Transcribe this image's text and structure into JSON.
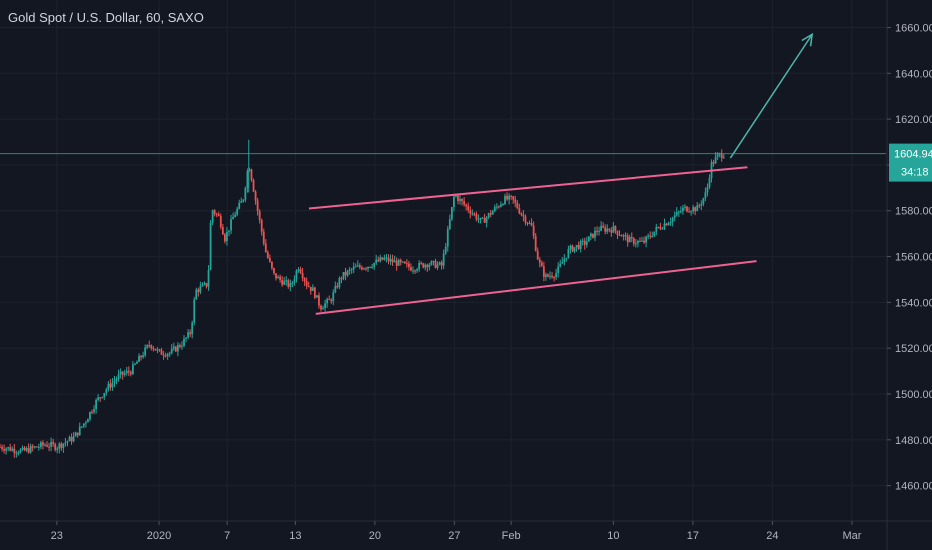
{
  "chart_data": {
    "type": "candlestick",
    "title": "Gold Spot / U.S. Dollar, 60, SAXO",
    "ylim": [
      1445,
      1672
    ],
    "y_ticks": [
      "1460.00",
      "1480.00",
      "1500.00",
      "1520.00",
      "1540.00",
      "1560.00",
      "1580.00",
      "1600.00",
      "1620.00",
      "1640.00",
      "1660.00"
    ],
    "x_ticks": [
      "23",
      "2020",
      "7",
      "13",
      "20",
      "27",
      "Feb",
      "10",
      "17",
      "24",
      "Mar"
    ],
    "x_tick_values": [
      0,
      9,
      15,
      21,
      28,
      35,
      40,
      49,
      56,
      63,
      70
    ],
    "xlim": [
      -5,
      73
    ],
    "last_price": "1604.94",
    "countdown": "34:18",
    "price_path": [
      [
        -5,
        1477
      ],
      [
        -3,
        1475
      ],
      [
        -1,
        1478
      ],
      [
        0,
        1477
      ],
      [
        1.5,
        1481
      ],
      [
        2.5,
        1488
      ],
      [
        3.5,
        1497
      ],
      [
        4.5,
        1503
      ],
      [
        5.5,
        1508
      ],
      [
        6.5,
        1510
      ],
      [
        7.5,
        1517
      ],
      [
        8.2,
        1522
      ],
      [
        9,
        1518
      ],
      [
        10,
        1518
      ],
      [
        11,
        1522
      ],
      [
        11.8,
        1527
      ],
      [
        12.2,
        1545
      ],
      [
        13.3,
        1548
      ],
      [
        13.6,
        1581
      ],
      [
        14.3,
        1577
      ],
      [
        14.8,
        1568
      ],
      [
        15.6,
        1578
      ],
      [
        16.4,
        1585
      ],
      [
        16.9,
        1601
      ],
      [
        17.6,
        1582
      ],
      [
        18.4,
        1562
      ],
      [
        19.1,
        1552
      ],
      [
        19.6,
        1550
      ],
      [
        20.6,
        1547
      ],
      [
        21.3,
        1556
      ],
      [
        22,
        1548
      ],
      [
        22.6,
        1545
      ],
      [
        23.2,
        1538
      ],
      [
        24.1,
        1541
      ],
      [
        25,
        1551
      ],
      [
        26.2,
        1555
      ],
      [
        27.4,
        1556
      ],
      [
        28.8,
        1559
      ],
      [
        30.1,
        1557
      ],
      [
        31.3,
        1555
      ],
      [
        32.6,
        1557
      ],
      [
        33.9,
        1556
      ],
      [
        35,
        1587
      ],
      [
        36.2,
        1581
      ],
      [
        37.4,
        1575
      ],
      [
        38.6,
        1581
      ],
      [
        39.4,
        1585
      ],
      [
        40.1,
        1585
      ],
      [
        41,
        1578
      ],
      [
        41.8,
        1573
      ],
      [
        42.4,
        1558
      ],
      [
        43,
        1551
      ],
      [
        44,
        1553
      ],
      [
        45.1,
        1563
      ],
      [
        46.5,
        1566
      ],
      [
        47.7,
        1572
      ],
      [
        49,
        1572
      ],
      [
        50.4,
        1567
      ],
      [
        51.6,
        1566
      ],
      [
        52.8,
        1572
      ],
      [
        54,
        1576
      ],
      [
        55.2,
        1581
      ],
      [
        56.4,
        1581
      ],
      [
        57.2,
        1588
      ],
      [
        57.6,
        1600
      ],
      [
        58.2,
        1604
      ],
      [
        58.8,
        1604.94
      ]
    ],
    "annotations": {
      "channel_upper": [
        [
          22.2,
          1581
        ],
        [
          60.8,
          1599
        ]
      ],
      "channel_lower": [
        [
          22.8,
          1535
        ],
        [
          61.6,
          1558
        ]
      ],
      "projection": [
        [
          59.3,
          1603
        ],
        [
          66.5,
          1657
        ]
      ]
    },
    "colors": {
      "background": "#131722",
      "up": "#26a69a",
      "down": "#ef5350",
      "channel": "#f06292",
      "projection": "#4db6ac",
      "grid": "#1e222d",
      "axis_text": "#b2b5be",
      "price_tag": "#26a69a"
    },
    "grid": true
  }
}
